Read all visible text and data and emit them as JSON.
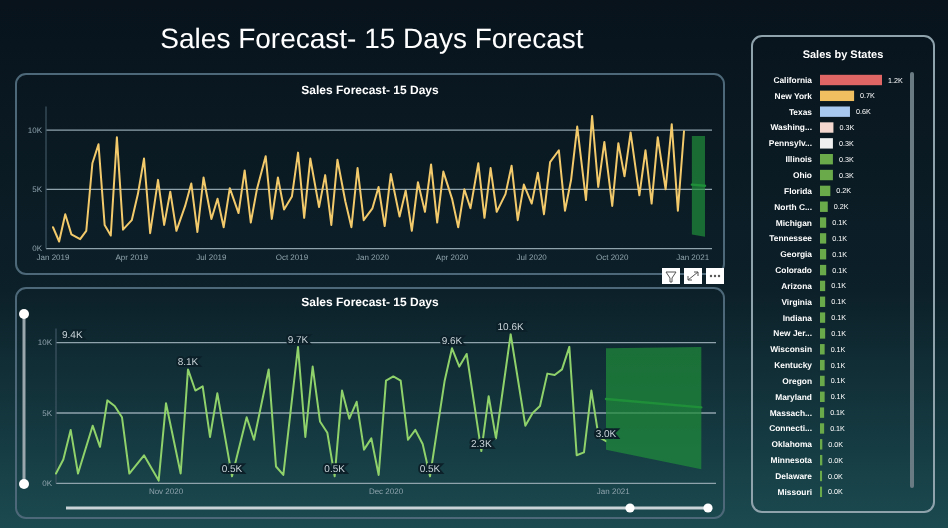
{
  "chart_data": [
    {
      "type": "other",
      "title": "Sales Forecast- 15 Days Forecast"
    },
    {
      "type": "line",
      "title": "Sales Forecast- 15 Days",
      "grid": "y",
      "xlim": [
        "2018-12-24",
        "2021-01-23"
      ],
      "ylim": [
        0,
        12
      ],
      "xticks": [
        {
          "value": "2019-01-01",
          "label": "Jan 2019"
        },
        {
          "value": "2019-04-01",
          "label": "Apr 2019"
        },
        {
          "value": "2019-07-01",
          "label": "Jul 2019"
        },
        {
          "value": "2019-10-01",
          "label": "Oct 2019"
        },
        {
          "value": "2020-01-01",
          "label": "Jan 2020"
        },
        {
          "value": "2020-04-01",
          "label": "Apr 2020"
        },
        {
          "value": "2020-07-01",
          "label": "Jul 2020"
        },
        {
          "value": "2020-10-01",
          "label": "Oct 2020"
        },
        {
          "value": "2021-01-01",
          "label": "Jan 2021"
        }
      ],
      "yticks": [
        {
          "value": 0,
          "label": "0K"
        },
        {
          "value": 5,
          "label": "5K"
        },
        {
          "value": 10,
          "label": "10K"
        }
      ],
      "x": [
        "2019-01-01",
        "2019-01-08",
        "2019-01-15",
        "2019-01-22",
        "2019-02-01",
        "2019-02-08",
        "2019-02-15",
        "2019-02-22",
        "2019-03-01",
        "2019-03-08",
        "2019-03-15",
        "2019-03-22",
        "2019-04-01",
        "2019-04-08",
        "2019-04-15",
        "2019-04-22",
        "2019-05-01",
        "2019-05-08",
        "2019-05-15",
        "2019-05-22",
        "2019-06-01",
        "2019-06-08",
        "2019-06-15",
        "2019-06-22",
        "2019-07-01",
        "2019-07-08",
        "2019-07-15",
        "2019-07-22",
        "2019-08-01",
        "2019-08-08",
        "2019-08-15",
        "2019-08-22",
        "2019-09-01",
        "2019-09-08",
        "2019-09-15",
        "2019-09-22",
        "2019-10-01",
        "2019-10-08",
        "2019-10-15",
        "2019-10-22",
        "2019-11-01",
        "2019-11-08",
        "2019-11-15",
        "2019-11-22",
        "2019-12-01",
        "2019-12-08",
        "2019-12-15",
        "2019-12-22",
        "2020-01-01",
        "2020-01-08",
        "2020-01-15",
        "2020-01-22",
        "2020-02-01",
        "2020-02-08",
        "2020-02-15",
        "2020-02-22",
        "2020-03-01",
        "2020-03-08",
        "2020-03-15",
        "2020-03-22",
        "2020-04-01",
        "2020-04-08",
        "2020-04-15",
        "2020-04-22",
        "2020-05-01",
        "2020-05-08",
        "2020-05-15",
        "2020-05-22",
        "2020-06-01",
        "2020-06-08",
        "2020-06-15",
        "2020-06-22",
        "2020-07-01",
        "2020-07-08",
        "2020-07-15",
        "2020-07-22",
        "2020-08-01",
        "2020-08-08",
        "2020-08-15",
        "2020-08-22",
        "2020-09-01",
        "2020-09-08",
        "2020-09-15",
        "2020-09-22",
        "2020-10-01",
        "2020-10-08",
        "2020-10-15",
        "2020-10-22",
        "2020-11-01",
        "2020-11-08",
        "2020-11-15",
        "2020-11-22",
        "2020-12-01",
        "2020-12-08",
        "2020-12-15",
        "2020-12-22"
      ],
      "series": [
        {
          "color": "#f2c96b",
          "values": [
            1.8,
            0.6,
            2.9,
            1.2,
            0.8,
            1.5,
            7.2,
            8.8,
            2.0,
            1.1,
            9.4,
            1.6,
            2.4,
            4.6,
            7.6,
            1.3,
            5.8,
            2.0,
            4.8,
            1.5,
            3.6,
            5.5,
            1.4,
            6.0,
            2.5,
            4.2,
            1.8,
            5.1,
            3.0,
            6.6,
            2.2,
            5.0,
            7.8,
            2.5,
            6.0,
            3.3,
            4.4,
            8.1,
            2.6,
            7.6,
            3.5,
            6.2,
            2.0,
            7.5,
            4.0,
            1.8,
            6.8,
            2.4,
            3.4,
            5.2,
            1.9,
            6.3,
            2.7,
            4.9,
            1.5,
            5.6,
            3.1,
            7.1,
            2.2,
            6.5,
            4.2,
            1.8,
            5.0,
            3.4,
            7.2,
            2.6,
            6.8,
            3.1,
            4.6,
            7.0,
            2.4,
            5.4,
            3.8,
            6.4,
            2.9,
            7.3,
            8.3,
            3.2,
            5.8,
            10.3,
            4.1,
            11.2,
            5.2,
            9.0,
            3.6,
            8.9,
            6.1,
            9.8,
            4.5,
            8.3,
            3.8,
            9.4,
            5.0,
            10.5,
            3.2,
            9.9
          ]
        },
        {
          "color": "#1f8f3a",
          "x": [
            "2020-12-31",
            "2021-01-15"
          ],
          "values": [
            5.4,
            5.3
          ],
          "lower": [
            1.2,
            1.0
          ],
          "upper": [
            9.5,
            9.5
          ]
        }
      ]
    },
    {
      "type": "line",
      "title": "Sales Forecast- 15 Days",
      "grid": "y",
      "xlim": [
        "2020-10-17",
        "2021-01-15"
      ],
      "ylim": [
        0,
        11
      ],
      "xticks": [
        {
          "value": "2020-11-01",
          "label": "Nov 2020"
        },
        {
          "value": "2020-12-01",
          "label": "Dec 2020"
        },
        {
          "value": "2021-01-01",
          "label": "Jan 2021"
        }
      ],
      "yticks": [
        {
          "value": 0,
          "label": "0K"
        },
        {
          "value": 5,
          "label": "5K"
        },
        {
          "value": 10,
          "label": "10K"
        }
      ],
      "x": [
        "2020-10-17",
        "2020-10-18",
        "2020-10-19",
        "2020-10-20",
        "2020-10-22",
        "2020-10-23",
        "2020-10-24",
        "2020-10-25",
        "2020-10-26",
        "2020-10-27",
        "2020-10-29",
        "2020-10-31",
        "2020-11-01",
        "2020-11-03",
        "2020-11-04",
        "2020-11-05",
        "2020-11-06",
        "2020-11-07",
        "2020-11-08",
        "2020-11-10",
        "2020-11-12",
        "2020-11-13",
        "2020-11-15",
        "2020-11-16",
        "2020-11-17",
        "2020-11-19",
        "2020-11-20",
        "2020-11-21",
        "2020-11-22",
        "2020-11-23",
        "2020-11-24",
        "2020-11-25",
        "2020-11-26",
        "2020-11-27",
        "2020-11-28",
        "2020-11-29",
        "2020-11-30",
        "2020-12-01",
        "2020-12-02",
        "2020-12-03",
        "2020-12-04",
        "2020-12-05",
        "2020-12-06",
        "2020-12-07",
        "2020-12-09",
        "2020-12-10",
        "2020-12-11",
        "2020-12-12",
        "2020-12-14",
        "2020-12-15",
        "2020-12-16",
        "2020-12-18",
        "2020-12-20",
        "2020-12-21",
        "2020-12-22",
        "2020-12-23",
        "2020-12-24",
        "2020-12-25",
        "2020-12-26",
        "2020-12-27",
        "2020-12-28",
        "2020-12-29",
        "2020-12-30",
        "2020-12-31"
      ],
      "series": [
        {
          "color": "#8fd16a",
          "values": [
            0.7,
            1.7,
            3.8,
            0.7,
            4.1,
            2.6,
            5.9,
            5.5,
            4.7,
            0.7,
            2.0,
            0.2,
            5.7,
            0.7,
            8.1,
            6.6,
            6.9,
            3.3,
            6.4,
            0.5,
            4.7,
            3.1,
            8.1,
            1.2,
            0.6,
            9.7,
            3.3,
            8.3,
            4.4,
            3.6,
            0.5,
            6.6,
            4.6,
            5.8,
            2.4,
            3.2,
            0.6,
            7.3,
            7.6,
            7.3,
            3.1,
            3.8,
            2.8,
            0.5,
            7.3,
            9.6,
            8.3,
            9.2,
            2.3,
            6.2,
            3.2,
            10.6,
            4.1,
            5.0,
            5.5,
            7.8,
            7.7,
            8.1,
            9.7,
            2.0,
            2.2,
            6.6,
            3.3,
            3.0
          ]
        },
        {
          "color": "#1f8f3a",
          "x": [
            "2020-12-31",
            "2021-01-13"
          ],
          "values": [
            6.0,
            5.4
          ],
          "lower": [
            2.4,
            1.0
          ],
          "upper": [
            9.6,
            9.7
          ]
        }
      ],
      "annotations": [
        "9.4K",
        {
          "text": "8.1K",
          "x": "2020-11-04",
          "y": 8.1
        },
        {
          "text": "0.5K",
          "x": "2020-11-10",
          "y": 0.5
        },
        {
          "text": "9.7K",
          "x": "2020-11-19",
          "y": 9.7
        },
        {
          "text": "0.5K",
          "x": "2020-11-24",
          "y": 0.5
        },
        {
          "text": "0.5K",
          "x": "2020-12-07",
          "y": 0.5
        },
        {
          "text": "9.6K",
          "x": "2020-12-10",
          "y": 9.6
        },
        {
          "text": "2.3K",
          "x": "2020-12-14",
          "y": 2.3
        },
        {
          "text": "10.6K",
          "x": "2020-12-18",
          "y": 10.6
        },
        {
          "text": "3.0K",
          "x": "2020-12-31",
          "y": 3.0
        }
      ]
    },
    {
      "type": "bar",
      "orientation": "horizontal",
      "title": "Sales by States",
      "categories": [
        "California",
        "New York",
        "Texas",
        "Washing...",
        "Pennsylv...",
        "Illinois",
        "Ohio",
        "Florida",
        "North C...",
        "Michigan",
        "Tennessee",
        "Georgia",
        "Colorado",
        "Arizona",
        "Virginia",
        "Indiana",
        "New Jer...",
        "Wisconsin",
        "Kentucky",
        "Oregon",
        "Maryland",
        "Massach...",
        "Connecti...",
        "Oklahoma",
        "Minnesota",
        "Delaware",
        "Missouri"
      ],
      "values": [
        1.2,
        0.66,
        0.58,
        0.26,
        0.25,
        0.25,
        0.25,
        0.2,
        0.15,
        0.12,
        0.12,
        0.12,
        0.12,
        0.1,
        0.1,
        0.1,
        0.1,
        0.09,
        0.09,
        0.09,
        0.09,
        0.08,
        0.08,
        0.045,
        0.045,
        0.04,
        0.04
      ],
      "value_labels": [
        "1.2K",
        "0.7K",
        "0.6K",
        "0.3K",
        "0.3K",
        "0.3K",
        "0.3K",
        "0.2K",
        "0.2K",
        "0.1K",
        "0.1K",
        "0.1K",
        "0.1K",
        "0.1K",
        "0.1K",
        "0.1K",
        "0.1K",
        "0.1K",
        "0.1K",
        "0.1K",
        "0.1K",
        "0.1K",
        "0.1K",
        "0.0K",
        "0.0K",
        "0.0K",
        "0.0K"
      ],
      "colors": [
        "#e06666",
        "#f0c060",
        "#a8c8f0",
        "#f4d8d0",
        "#f0f0f0",
        "#6aaa4a",
        "#6aaa4a",
        "#6aaa4a",
        "#6aaa4a",
        "#6aaa4a",
        "#6aaa4a",
        "#6aaa4a",
        "#6aaa4a",
        "#6aaa4a",
        "#6aaa4a",
        "#6aaa4a",
        "#6aaa4a",
        "#6aaa4a",
        "#6aaa4a",
        "#6aaa4a",
        "#6aaa4a",
        "#6aaa4a",
        "#6aaa4a",
        "#6aaa4a",
        "#6aaa4a",
        "#6aaa4a",
        "#6aaa4a"
      ]
    }
  ]
}
